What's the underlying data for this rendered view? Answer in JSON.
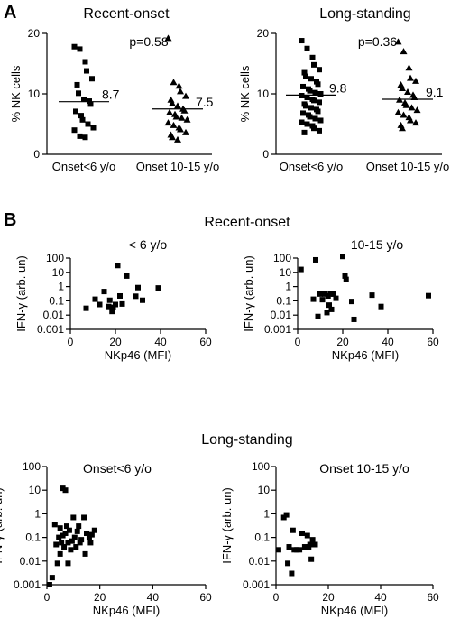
{
  "panel_letters": {
    "a": "A",
    "b": "B"
  },
  "section_titles": {
    "recent": "Recent-onset",
    "long": "Long-standing"
  },
  "chart_data": [
    {
      "type": "scatter",
      "id": "A-recent",
      "title": "Recent-onset",
      "ylabel": "% NK cells",
      "ylim": [
        0,
        20
      ],
      "yticks": [
        "0",
        "10",
        "20"
      ],
      "categories": [
        "Onset<6 y/o",
        "Onset 10-15 y/o"
      ],
      "pvalue": "p=0.58",
      "series": [
        {
          "marker": "square",
          "values": [
            17.8,
            17.4,
            15.3,
            13.8,
            12.5,
            11.5,
            10.1,
            9.1,
            8.8,
            8.3,
            7.1,
            6.4,
            5.7,
            5.0,
            4.4,
            4.0,
            3.0,
            2.8
          ],
          "mean": 8.7,
          "mean_label": "8.7"
        },
        {
          "marker": "triangle",
          "values": [
            19.2,
            11.9,
            11.3,
            10.4,
            9.6,
            9.0,
            8.4,
            8.0,
            7.5,
            7.2,
            6.9,
            6.6,
            6.2,
            6.0,
            5.7,
            5.2,
            4.8,
            4.4,
            4.1,
            3.6,
            3.2,
            2.8,
            2.4
          ],
          "mean": 7.5,
          "mean_label": "7.5"
        }
      ]
    },
    {
      "type": "scatter",
      "id": "A-long",
      "title": "Long-standing",
      "ylabel": "% NK cells",
      "ylim": [
        0,
        20
      ],
      "yticks": [
        "0",
        "10",
        "20"
      ],
      "categories": [
        "Onset<6 y/o",
        "Onset 10-15 y/o"
      ],
      "pvalue": "p=0.36",
      "series": [
        {
          "marker": "square",
          "values": [
            18.8,
            17.5,
            16.0,
            14.8,
            14.0,
            13.5,
            12.9,
            12.5,
            12.0,
            11.6,
            11.2,
            10.8,
            10.5,
            10.2,
            10.0,
            9.7,
            9.4,
            9.1,
            8.9,
            8.6,
            8.3,
            8.0,
            7.7,
            7.4,
            7.1,
            6.8,
            6.5,
            6.2,
            5.9,
            5.6,
            5.3,
            5.0,
            4.7,
            4.3,
            3.9,
            3.6
          ],
          "mean": 9.8,
          "mean_label": "9.8"
        },
        {
          "marker": "triangle",
          "values": [
            18.6,
            17.0,
            14.3,
            12.6,
            12.1,
            11.5,
            10.9,
            10.3,
            9.8,
            9.4,
            9.0,
            8.5,
            8.1,
            7.7,
            7.3,
            6.9,
            6.5,
            6.1,
            5.6,
            5.2,
            4.8,
            4.3
          ],
          "mean": 9.1,
          "mean_label": "9.1"
        }
      ]
    },
    {
      "type": "scatter",
      "id": "B-recent-young",
      "title": "< 6 y/o",
      "xlabel": "NKp46 (MFI)",
      "ylabel": "IFN-γ (arb. un)",
      "xlim": [
        0,
        60
      ],
      "xticks": [
        "0",
        "20",
        "40",
        "60"
      ],
      "ylim_log": [
        0.001,
        100
      ],
      "yticks": [
        "0.001",
        "0.01",
        "0.1",
        "1",
        "10",
        "100"
      ],
      "points": [
        [
          7,
          0.03
        ],
        [
          11,
          0.13
        ],
        [
          13,
          0.055
        ],
        [
          15,
          0.45
        ],
        [
          17,
          0.04
        ],
        [
          17.5,
          0.11
        ],
        [
          18.5,
          0.018
        ],
        [
          19,
          0.035
        ],
        [
          20,
          0.055
        ],
        [
          21,
          30
        ],
        [
          22,
          0.22
        ],
        [
          23,
          0.06
        ],
        [
          25,
          5.5
        ],
        [
          29,
          0.21
        ],
        [
          30,
          0.85
        ],
        [
          32,
          0.11
        ],
        [
          39,
          0.8
        ]
      ]
    },
    {
      "type": "scatter",
      "id": "B-recent-old",
      "title": "10-15 y/o",
      "xlabel": "NKp46 (MFI)",
      "ylabel": "IFN-γ (arb. un)",
      "xlim": [
        0,
        60
      ],
      "xticks": [
        "0",
        "20",
        "40",
        "60"
      ],
      "ylim_log": [
        0.001,
        100
      ],
      "yticks": [
        "0.001",
        "0.01",
        "0.1",
        "1",
        "10",
        "100"
      ],
      "points": [
        [
          1.5,
          16
        ],
        [
          7,
          0.13
        ],
        [
          8,
          75
        ],
        [
          9,
          0.008
        ],
        [
          10,
          0.3
        ],
        [
          11,
          0.12
        ],
        [
          12,
          0.3
        ],
        [
          13,
          0.015
        ],
        [
          13.5,
          0.22
        ],
        [
          14,
          0.05
        ],
        [
          14.5,
          0.3
        ],
        [
          15,
          0.025
        ],
        [
          16,
          0.3
        ],
        [
          17,
          0.15
        ],
        [
          20,
          130
        ],
        [
          21,
          5.5
        ],
        [
          21.5,
          3.2
        ],
        [
          24,
          0.09
        ],
        [
          25,
          0.005
        ],
        [
          33,
          0.25
        ],
        [
          37,
          0.04
        ],
        [
          58,
          0.23
        ]
      ]
    },
    {
      "type": "scatter",
      "id": "B-long-young",
      "title": "Onset<6 y/o",
      "xlabel": "NKp46 (MFI)",
      "ylabel": "IFN-γ (arb. un)",
      "xlim": [
        0,
        60
      ],
      "xticks": [
        "0",
        "20",
        "40",
        "60"
      ],
      "ylim_log": [
        0.001,
        100
      ],
      "yticks": [
        "0.001",
        "0.01",
        "0.1",
        "1",
        "10",
        "100"
      ],
      "points": [
        [
          1,
          0.001
        ],
        [
          2,
          0.002
        ],
        [
          3,
          0.35
        ],
        [
          3.5,
          0.05
        ],
        [
          4,
          0.008
        ],
        [
          4.5,
          0.1
        ],
        [
          5,
          0.25
        ],
        [
          5,
          0.02
        ],
        [
          5.5,
          0.06
        ],
        [
          6,
          12
        ],
        [
          6,
          0.12
        ],
        [
          6.5,
          0.04
        ],
        [
          7,
          10
        ],
        [
          7,
          0.15
        ],
        [
          7.5,
          0.3
        ],
        [
          8,
          0.06
        ],
        [
          8,
          0.008
        ],
        [
          8.5,
          0.2
        ],
        [
          9,
          0.03
        ],
        [
          9.5,
          0.07
        ],
        [
          10,
          0.7
        ],
        [
          10.5,
          0.1
        ],
        [
          11,
          0.04
        ],
        [
          11.5,
          0.18
        ],
        [
          12,
          0.3
        ],
        [
          12.5,
          0.06
        ],
        [
          13,
          0.08
        ],
        [
          14,
          0.7
        ],
        [
          14.5,
          0.02
        ],
        [
          15,
          0.15
        ],
        [
          16,
          0.1
        ],
        [
          16.5,
          0.06
        ],
        [
          17,
          0.13
        ],
        [
          18,
          0.2
        ]
      ]
    },
    {
      "type": "scatter",
      "id": "B-long-old",
      "title": "Onset 10-15 y/o",
      "xlabel": "NKp46 (MFI)",
      "ylabel": "IFN-γ (arb. un)",
      "xlim": [
        0,
        60
      ],
      "xticks": [
        "0",
        "20",
        "40",
        "60"
      ],
      "ylim_log": [
        0.001,
        100
      ],
      "yticks": [
        "0.001",
        "0.01",
        "0.1",
        "1",
        "10",
        "100"
      ],
      "points": [
        [
          1,
          0.03
        ],
        [
          3,
          0.7
        ],
        [
          4,
          0.9
        ],
        [
          4.5,
          0.008
        ],
        [
          5,
          0.04
        ],
        [
          6,
          0.003
        ],
        [
          6.5,
          0.2
        ],
        [
          7,
          0.03
        ],
        [
          8,
          0.03
        ],
        [
          9,
          0.03
        ],
        [
          10,
          0.15
        ],
        [
          11,
          0.04
        ],
        [
          12,
          0.12
        ],
        [
          12.5,
          0.04
        ],
        [
          13,
          0.05
        ],
        [
          13.5,
          0.012
        ],
        [
          14,
          0.08
        ],
        [
          15,
          0.05
        ]
      ]
    }
  ]
}
